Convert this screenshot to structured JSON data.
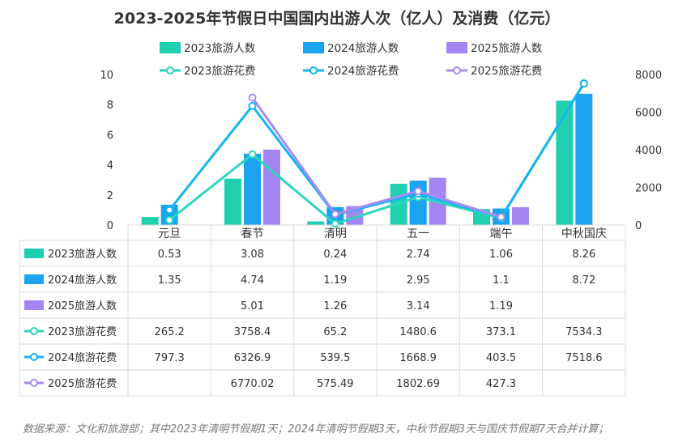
{
  "chart_data": {
    "type": "bar+line",
    "title": "2023-2025年节假日中国国内出游人次（亿人）及消费（亿元）",
    "categories": [
      "元旦",
      "春节",
      "清明",
      "五一",
      "端午",
      "中秋国庆"
    ],
    "y_left": {
      "ylim": [
        0,
        10
      ],
      "ticks": [
        "0",
        "2",
        "4",
        "6",
        "8",
        "10"
      ]
    },
    "y_right": {
      "ylim": [
        0,
        8000
      ],
      "ticks": [
        "0",
        "2000",
        "4000",
        "6000",
        "8000"
      ]
    },
    "series": [
      {
        "name": "2023旅游人数",
        "kind": "bar",
        "axis": "left",
        "color": "#1fcfb0",
        "values": [
          0.53,
          3.08,
          0.24,
          2.74,
          1.06,
          8.26
        ],
        "labels": [
          "0.53",
          "3.08",
          "0.24",
          "2.74",
          "1.06",
          "8.26"
        ]
      },
      {
        "name": "2024旅游人数",
        "kind": "bar",
        "axis": "left",
        "color": "#1aa3ee",
        "values": [
          1.35,
          4.74,
          1.19,
          2.95,
          1.1,
          8.72
        ],
        "labels": [
          "1.35",
          "4.74",
          "1.19",
          "2.95",
          "1.1",
          "8.72"
        ]
      },
      {
        "name": "2025旅游人数",
        "kind": "bar",
        "axis": "left",
        "color": "#a486f2",
        "values": [
          null,
          5.01,
          1.26,
          3.14,
          1.19,
          null
        ],
        "labels": [
          "",
          "5.01",
          "1.26",
          "3.14",
          "1.19",
          ""
        ]
      },
      {
        "name": "2023旅游花费",
        "kind": "line",
        "axis": "right",
        "color": "#2dd6bf",
        "values": [
          265.2,
          3758.4,
          65.2,
          1480.6,
          373.1,
          7534.3
        ],
        "labels": [
          "265.2",
          "3758.4",
          "65.2",
          "1480.6",
          "373.1",
          "7534.3"
        ]
      },
      {
        "name": "2024旅游花费",
        "kind": "line",
        "axis": "right",
        "color": "#15b4f2",
        "values": [
          797.3,
          6326.9,
          539.5,
          1668.9,
          403.5,
          7518.6
        ],
        "labels": [
          "797.3",
          "6326.9",
          "539.5",
          "1668.9",
          "403.5",
          "7518.6"
        ]
      },
      {
        "name": "2025旅游花费",
        "kind": "line",
        "axis": "right",
        "color": "#a98bf0",
        "values": [
          null,
          6770.02,
          575.49,
          1802.69,
          427.3,
          null
        ],
        "labels": [
          "",
          "6770.02",
          "575.49",
          "1802.69",
          "427.3",
          ""
        ]
      }
    ],
    "legend": [
      "2023旅游人数",
      "2024旅游人数",
      "2025旅游人数",
      "2023旅游花费",
      "2024旅游花费",
      "2025旅游花费"
    ],
    "footnote": "数据来源：文化和旅游部；其中2023年清明节假期1天；2024年清明节假期3天，中秋节假期3天与国庆节假期7天合并计算；"
  }
}
